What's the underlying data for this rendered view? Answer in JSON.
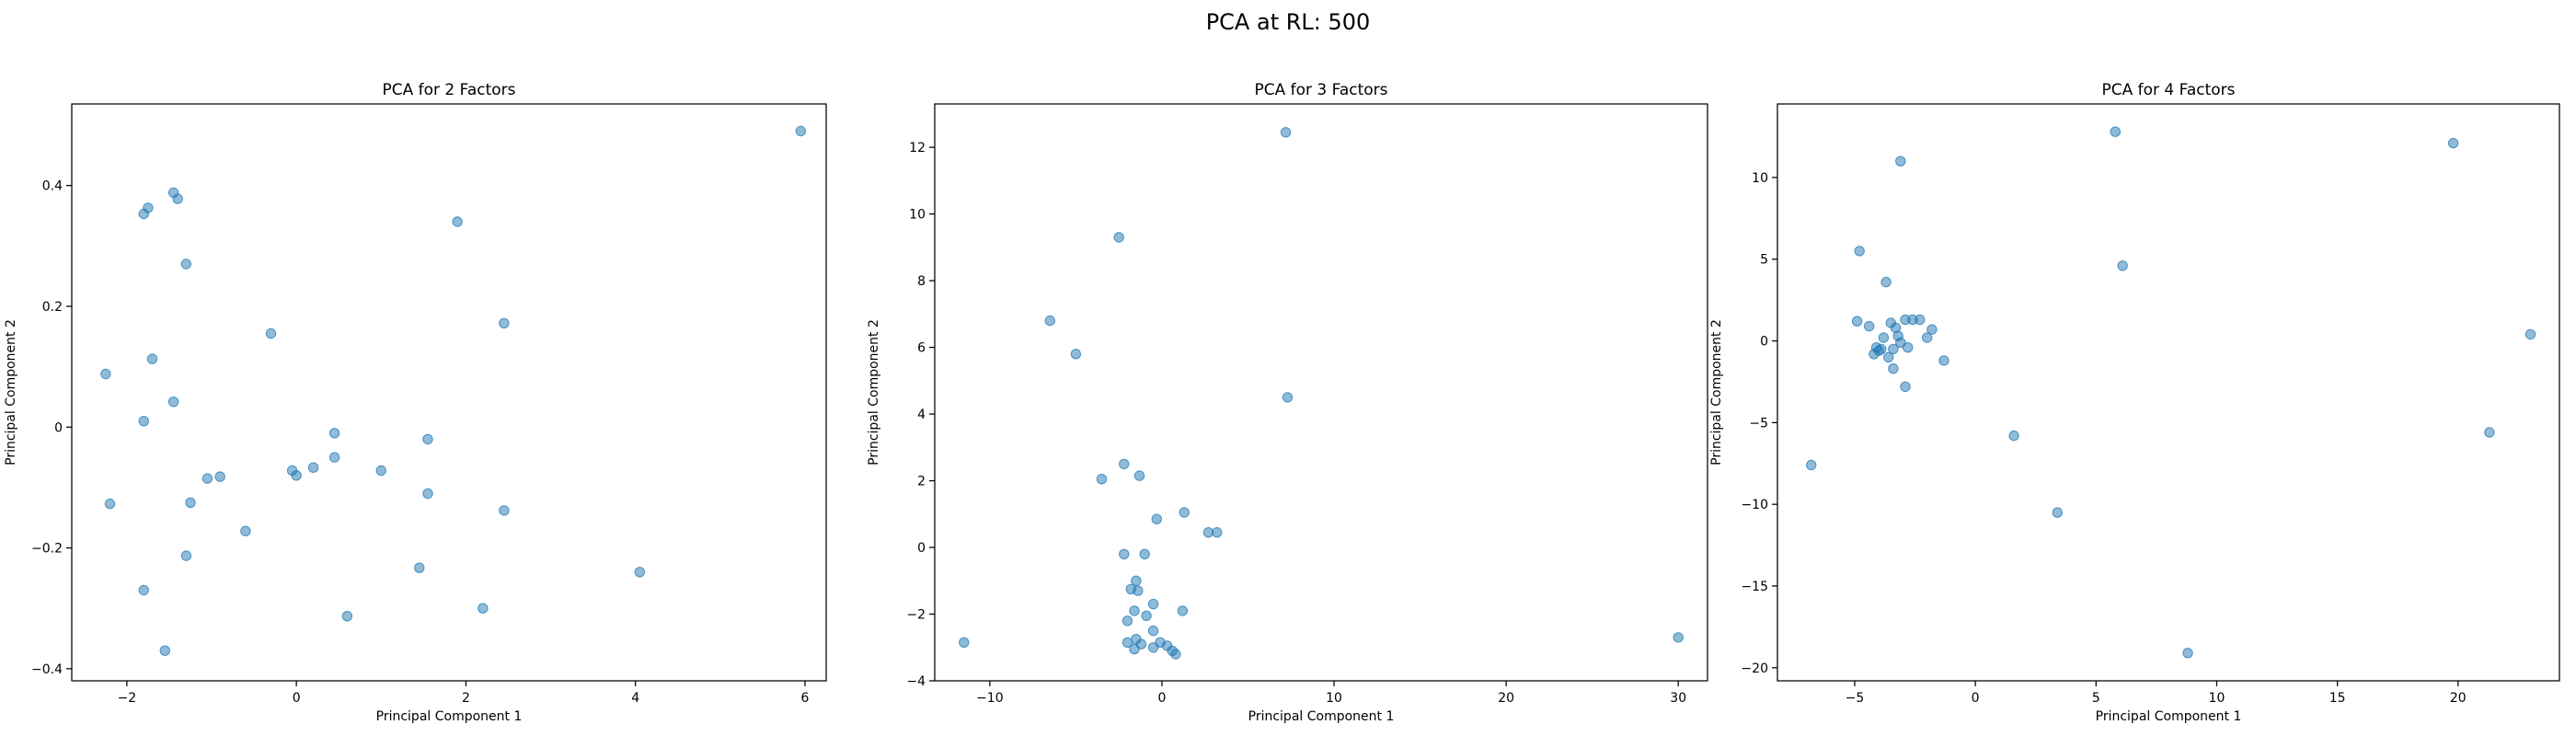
{
  "figure": {
    "suptitle": "PCA at RL: 500"
  },
  "colors": {
    "point_fill": "#1f77b4",
    "point_opacity": 0.5
  },
  "chart_data": [
    {
      "type": "scatter",
      "title": "PCA for 2 Factors",
      "xlabel": "Principal Component 1",
      "ylabel": "Principal Component 2",
      "xlim": [
        -2.65,
        6.25
      ],
      "ylim": [
        -0.42,
        0.535
      ],
      "xticks": [
        -2,
        0,
        2,
        4,
        6
      ],
      "yticks": [
        -0.4,
        -0.2,
        0.0,
        0.2,
        0.4
      ],
      "grid": false,
      "points": [
        [
          5.95,
          0.49
        ],
        [
          -1.45,
          0.388
        ],
        [
          -1.4,
          0.378
        ],
        [
          -1.75,
          0.363
        ],
        [
          -1.8,
          0.353
        ],
        [
          1.9,
          0.34
        ],
        [
          -1.3,
          0.27
        ],
        [
          2.45,
          0.172
        ],
        [
          -0.3,
          0.155
        ],
        [
          -1.7,
          0.113
        ],
        [
          -2.25,
          0.088
        ],
        [
          -1.45,
          0.042
        ],
        [
          -1.8,
          0.01
        ],
        [
          0.45,
          -0.01
        ],
        [
          1.55,
          -0.02
        ],
        [
          0.45,
          -0.05
        ],
        [
          0.2,
          -0.067
        ],
        [
          -0.05,
          -0.072
        ],
        [
          1.0,
          -0.072
        ],
        [
          0.0,
          -0.08
        ],
        [
          -0.9,
          -0.082
        ],
        [
          -1.05,
          -0.085
        ],
        [
          1.55,
          -0.11
        ],
        [
          -2.2,
          -0.127
        ],
        [
          -1.25,
          -0.125
        ],
        [
          2.45,
          -0.138
        ],
        [
          -0.6,
          -0.172
        ],
        [
          -1.3,
          -0.213
        ],
        [
          1.45,
          -0.233
        ],
        [
          4.05,
          -0.24
        ],
        [
          -1.8,
          -0.27
        ],
        [
          2.2,
          -0.3
        ],
        [
          0.6,
          -0.313
        ],
        [
          -1.55,
          -0.37
        ]
      ]
    },
    {
      "type": "scatter",
      "title": "PCA for 3 Factors",
      "xlabel": "Principal Component 1",
      "ylabel": "Principal Component 2",
      "xlim": [
        -13.2,
        31.7
      ],
      "ylim": [
        -4.0,
        13.3
      ],
      "xticks": [
        -10,
        0,
        10,
        20,
        30
      ],
      "yticks": [
        -4,
        -2,
        0,
        2,
        4,
        6,
        8,
        10,
        12
      ],
      "grid": false,
      "points": [
        [
          7.2,
          12.45
        ],
        [
          -2.5,
          9.3
        ],
        [
          -6.5,
          6.8
        ],
        [
          -5.0,
          5.8
        ],
        [
          7.3,
          4.5
        ],
        [
          -2.2,
          2.5
        ],
        [
          -3.5,
          2.05
        ],
        [
          -1.3,
          2.15
        ],
        [
          1.3,
          1.05
        ],
        [
          -0.3,
          0.85
        ],
        [
          2.7,
          0.45
        ],
        [
          3.2,
          0.45
        ],
        [
          -2.2,
          -0.2
        ],
        [
          -1.0,
          -0.2
        ],
        [
          -1.5,
          -1.0
        ],
        [
          -1.8,
          -1.25
        ],
        [
          -1.4,
          -1.3
        ],
        [
          -0.5,
          -1.7
        ],
        [
          1.2,
          -1.9
        ],
        [
          -1.6,
          -1.9
        ],
        [
          -0.9,
          -2.05
        ],
        [
          -2.0,
          -2.2
        ],
        [
          -0.5,
          -2.5
        ],
        [
          -1.5,
          -2.75
        ],
        [
          -2.0,
          -2.85
        ],
        [
          -0.1,
          -2.85
        ],
        [
          -1.2,
          -2.9
        ],
        [
          0.3,
          -2.95
        ],
        [
          -0.5,
          -3.0
        ],
        [
          -1.6,
          -3.05
        ],
        [
          0.6,
          -3.1
        ],
        [
          0.8,
          -3.2
        ],
        [
          -11.5,
          -2.85
        ],
        [
          30.0,
          -2.7
        ]
      ]
    },
    {
      "type": "scatter",
      "title": "PCA for 4 Factors",
      "xlabel": "Principal Component 1",
      "ylabel": "Principal Component 2",
      "xlim": [
        -8.2,
        24.2
      ],
      "ylim": [
        -20.8,
        14.5
      ],
      "xticks": [
        -5,
        0,
        5,
        10,
        15,
        20
      ],
      "yticks": [
        -20,
        -15,
        -10,
        -5,
        0,
        5,
        10
      ],
      "grid": false,
      "points": [
        [
          5.8,
          12.8
        ],
        [
          19.8,
          12.1
        ],
        [
          -3.1,
          11.0
        ],
        [
          6.1,
          4.6
        ],
        [
          -4.8,
          5.5
        ],
        [
          -3.7,
          3.6
        ],
        [
          -4.9,
          1.2
        ],
        [
          -4.4,
          0.9
        ],
        [
          -3.5,
          1.1
        ],
        [
          -2.9,
          1.3
        ],
        [
          -2.6,
          1.3
        ],
        [
          -2.3,
          1.3
        ],
        [
          -3.3,
          0.8
        ],
        [
          -1.8,
          0.7
        ],
        [
          -3.8,
          0.2
        ],
        [
          -3.2,
          0.3
        ],
        [
          -2.0,
          0.2
        ],
        [
          -3.1,
          -0.1
        ],
        [
          -2.8,
          -0.4
        ],
        [
          -3.4,
          -0.5
        ],
        [
          -4.1,
          -0.4
        ],
        [
          -4.0,
          -0.6
        ],
        [
          -4.2,
          -0.8
        ],
        [
          -3.9,
          -0.5
        ],
        [
          -3.6,
          -1.0
        ],
        [
          -1.3,
          -1.2
        ],
        [
          -3.4,
          -1.7
        ],
        [
          -2.9,
          -2.8
        ],
        [
          23.0,
          0.4
        ],
        [
          1.6,
          -5.8
        ],
        [
          21.3,
          -5.6
        ],
        [
          -6.8,
          -7.6
        ],
        [
          3.4,
          -10.5
        ],
        [
          8.8,
          -19.1
        ]
      ]
    }
  ]
}
